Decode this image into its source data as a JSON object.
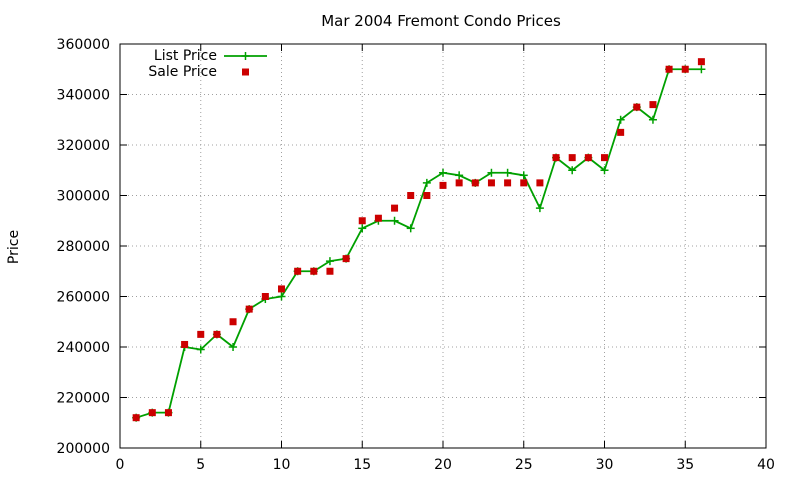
{
  "chart_data": {
    "type": "line",
    "title": "Mar 2004 Fremont Condo Prices",
    "xlabel": "",
    "ylabel": "Price",
    "xlim": [
      0,
      40
    ],
    "ylim": [
      200000,
      360000
    ],
    "x_ticks": [
      0,
      5,
      10,
      15,
      20,
      25,
      30,
      35,
      40
    ],
    "y_ticks": [
      200000,
      220000,
      240000,
      260000,
      280000,
      300000,
      320000,
      340000,
      360000
    ],
    "grid": true,
    "legend_position": "top-left",
    "series": [
      {
        "name": "List Price",
        "style": "line-with-plus-markers",
        "color": "#00a000",
        "points": [
          [
            1,
            212000
          ],
          [
            2,
            214000
          ],
          [
            3,
            214000
          ],
          [
            4,
            240000
          ],
          [
            5,
            239000
          ],
          [
            6,
            245000
          ],
          [
            7,
            240000
          ],
          [
            8,
            255000
          ],
          [
            9,
            259000
          ],
          [
            10,
            260000
          ],
          [
            11,
            270000
          ],
          [
            12,
            270000
          ],
          [
            13,
            274000
          ],
          [
            14,
            275000
          ],
          [
            15,
            287000
          ],
          [
            16,
            290000
          ],
          [
            17,
            290000
          ],
          [
            18,
            287000
          ],
          [
            19,
            305000
          ],
          [
            20,
            309000
          ],
          [
            21,
            308000
          ],
          [
            22,
            305000
          ],
          [
            23,
            309000
          ],
          [
            24,
            309000
          ],
          [
            25,
            308000
          ],
          [
            26,
            295000
          ],
          [
            27,
            315000
          ],
          [
            28,
            310000
          ],
          [
            29,
            315000
          ],
          [
            30,
            310000
          ],
          [
            31,
            330000
          ],
          [
            32,
            335000
          ],
          [
            33,
            330000
          ],
          [
            34,
            350000
          ],
          [
            35,
            350000
          ],
          [
            36,
            350000
          ]
        ]
      },
      {
        "name": "Sale Price",
        "style": "square-markers",
        "color": "#cc0000",
        "points": [
          [
            1,
            212000
          ],
          [
            2,
            214000
          ],
          [
            3,
            214000
          ],
          [
            4,
            241000
          ],
          [
            5,
            245000
          ],
          [
            6,
            245000
          ],
          [
            7,
            250000
          ],
          [
            8,
            255000
          ],
          [
            9,
            260000
          ],
          [
            10,
            263000
          ],
          [
            11,
            270000
          ],
          [
            12,
            270000
          ],
          [
            13,
            270000
          ],
          [
            14,
            275000
          ],
          [
            15,
            290000
          ],
          [
            16,
            291000
          ],
          [
            17,
            295000
          ],
          [
            18,
            300000
          ],
          [
            19,
            300000
          ],
          [
            20,
            304000
          ],
          [
            21,
            305000
          ],
          [
            22,
            305000
          ],
          [
            23,
            305000
          ],
          [
            24,
            305000
          ],
          [
            25,
            305000
          ],
          [
            26,
            305000
          ],
          [
            27,
            315000
          ],
          [
            28,
            315000
          ],
          [
            29,
            315000
          ],
          [
            30,
            315000
          ],
          [
            31,
            325000
          ],
          [
            32,
            335000
          ],
          [
            33,
            336000
          ],
          [
            34,
            350000
          ],
          [
            35,
            350000
          ],
          [
            36,
            353000
          ]
        ]
      }
    ]
  }
}
